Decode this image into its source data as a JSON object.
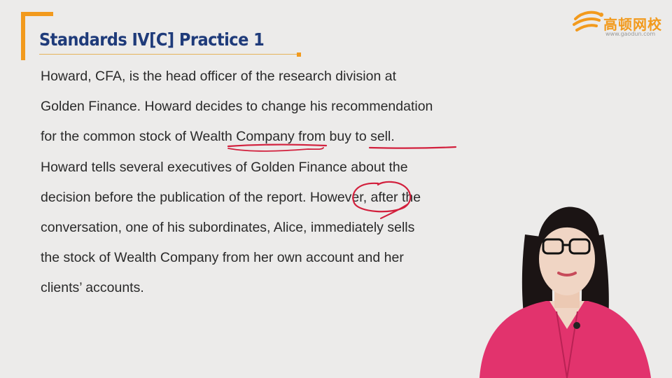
{
  "slide": {
    "title": "Standards IV[C] Practice 1",
    "lines": [
      "Howard, CFA, is the head officer of the research division at",
      "Golden Finance. Howard decides to change his recommendation",
      "for the common stock of Wealth Company from buy to sell.",
      "Howard tells several executives of Golden Finance about the",
      "decision before the publication of the report. However, after the",
      "conversation, one of his subordinates, Alice, immediately sells",
      "the stock of Wealth Company from her own account and her",
      "clients’ accounts."
    ]
  },
  "logo": {
    "name": "高顿网校",
    "url": "www.gaodun.com"
  },
  "colors": {
    "accent": "#f29a1d",
    "title": "#1f3b7a",
    "ink": "#d21f3c",
    "background": "#ecebea"
  },
  "icons": {
    "logo": "gaodun-logo-icon",
    "presenter": "presenter-image"
  }
}
